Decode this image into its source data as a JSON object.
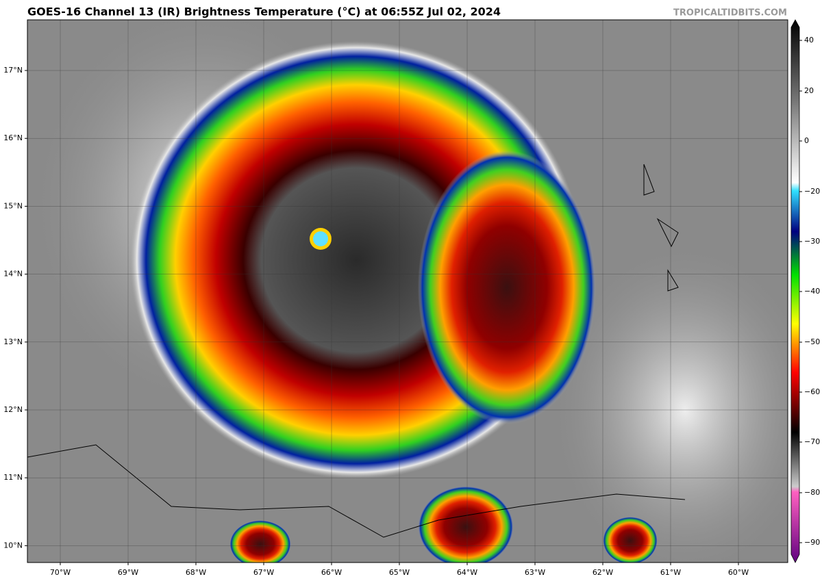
{
  "header": {
    "title": "GOES-16 Channel 13 (IR) Brightness Temperature (°C) at 06:55Z Jul 02, 2024",
    "credit": "TROPICALTIDBITS.COM"
  },
  "map": {
    "lat_labels": [
      "17°N",
      "16°N",
      "15°N",
      "14°N",
      "13°N",
      "12°N",
      "11°N",
      "10°N"
    ],
    "lon_labels": [
      "70°W",
      "69°W",
      "68°W",
      "67°W",
      "66°W",
      "65°W",
      "64°W",
      "63°W",
      "62°W",
      "61°W",
      "60°W"
    ]
  },
  "colorbar": {
    "ticks": [
      "40",
      "20",
      "0",
      "−20",
      "−30",
      "−40",
      "−50",
      "−60",
      "−70",
      "−80",
      "−90"
    ]
  }
}
